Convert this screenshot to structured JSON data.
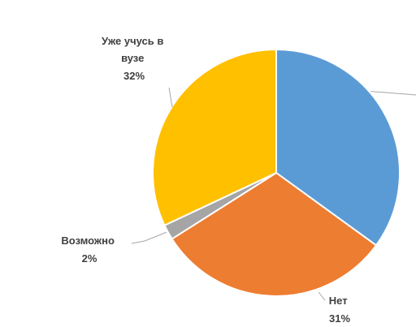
{
  "chart_data": {
    "type": "pie",
    "slices": [
      {
        "label": "",
        "value": 35,
        "percent_text": "",
        "color": "#5B9BD5"
      },
      {
        "label": "Нет",
        "value": 31,
        "percent_text": "31%",
        "color": "#ED7D31"
      },
      {
        "label": "Возможно",
        "value": 2,
        "percent_text": "2%",
        "color": "#A5A5A5"
      },
      {
        "label": "Уже учусь в вузе",
        "value": 32,
        "percent_text": "32%",
        "color": "#FFC000"
      }
    ],
    "start_angle_deg": 0,
    "direction": "clockwise",
    "legend": "none",
    "label_lines": [
      "Уже учусь в",
      "вузе"
    ]
  }
}
